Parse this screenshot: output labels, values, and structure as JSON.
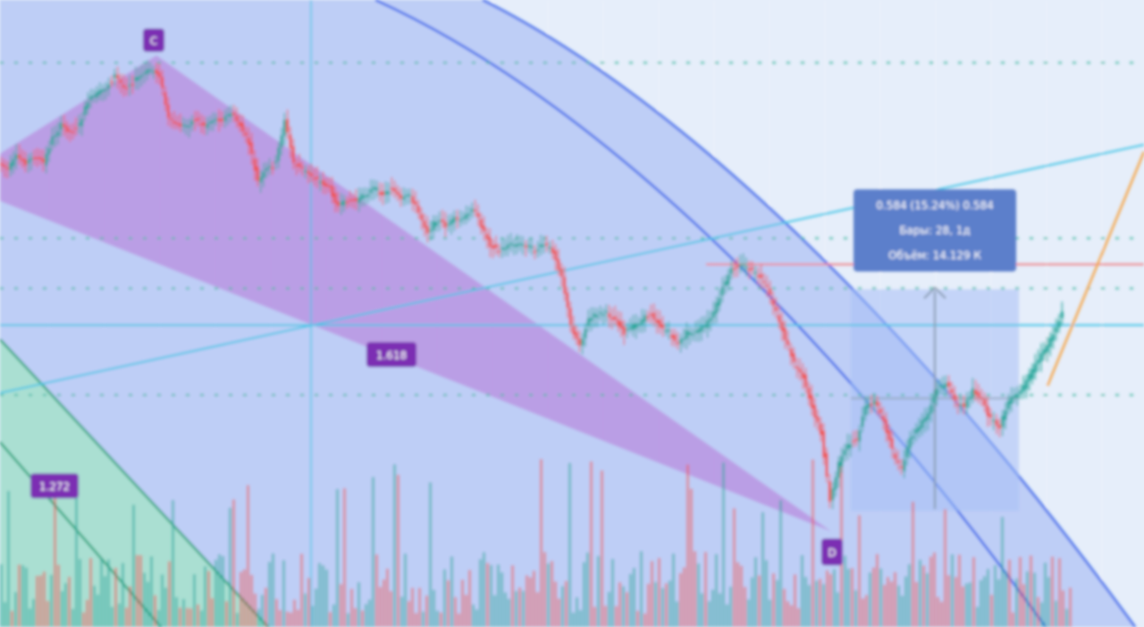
{
  "chart_data": {
    "type": "candlestick",
    "title": "",
    "xlabel": "",
    "ylabel": "",
    "grid": true,
    "colors": {
      "up": "#26a69a",
      "down": "#ef5350",
      "background": "#e6eefa",
      "channel_fill": "#b6c8f4",
      "channel_line": "#2f62ea",
      "wedge_fill": "#b98ee0",
      "label_bg": "#7b2fb3",
      "cyan_line": "#3fc4e6",
      "green_fill": "#a7e3cc",
      "green_line": "#1fa37a",
      "orange_line": "#f5a64a",
      "red_line": "#f07f85",
      "tooltip_bg": "#5c7fcb",
      "dotted_line": "#45b8a4"
    },
    "pattern_labels": [
      "C",
      "1.618",
      "1.272",
      "D"
    ],
    "tooltip": {
      "line1": "0.584 (15.24%) 0.584",
      "line2": "Бары: 28, 1д",
      "line3": "Объём: 14.129 К"
    },
    "horizontal_levels": [
      0.1,
      0.38,
      0.46,
      0.63
    ],
    "resistance_level": 0.42,
    "price_path": [
      [
        0,
        0.26
      ],
      [
        10,
        0.27
      ],
      [
        20,
        0.25
      ],
      [
        30,
        0.26
      ],
      [
        40,
        0.25
      ],
      [
        50,
        0.26
      ],
      [
        60,
        0.22
      ],
      [
        70,
        0.2
      ],
      [
        80,
        0.21
      ],
      [
        90,
        0.2
      ],
      [
        100,
        0.16
      ],
      [
        110,
        0.15
      ],
      [
        120,
        0.14
      ],
      [
        130,
        0.12
      ],
      [
        140,
        0.14
      ],
      [
        150,
        0.13
      ],
      [
        160,
        0.12
      ],
      [
        170,
        0.11
      ],
      [
        180,
        0.12
      ],
      [
        190,
        0.19
      ],
      [
        200,
        0.2
      ],
      [
        210,
        0.2
      ],
      [
        220,
        0.19
      ],
      [
        230,
        0.2
      ],
      [
        240,
        0.19
      ],
      [
        250,
        0.19
      ],
      [
        260,
        0.18
      ],
      [
        270,
        0.2
      ],
      [
        280,
        0.23
      ],
      [
        290,
        0.29
      ],
      [
        300,
        0.27
      ],
      [
        310,
        0.26
      ],
      [
        320,
        0.19
      ],
      [
        330,
        0.26
      ],
      [
        340,
        0.27
      ],
      [
        350,
        0.28
      ],
      [
        360,
        0.29
      ],
      [
        370,
        0.3
      ],
      [
        380,
        0.33
      ],
      [
        390,
        0.32
      ],
      [
        400,
        0.32
      ],
      [
        410,
        0.31
      ],
      [
        420,
        0.3
      ],
      [
        430,
        0.31
      ],
      [
        440,
        0.3
      ],
      [
        450,
        0.32
      ],
      [
        460,
        0.31
      ],
      [
        470,
        0.34
      ],
      [
        480,
        0.37
      ],
      [
        490,
        0.35
      ],
      [
        500,
        0.36
      ],
      [
        510,
        0.35
      ],
      [
        520,
        0.35
      ],
      [
        530,
        0.33
      ],
      [
        540,
        0.36
      ],
      [
        550,
        0.39
      ],
      [
        560,
        0.4
      ],
      [
        570,
        0.39
      ],
      [
        580,
        0.39
      ],
      [
        590,
        0.39
      ],
      [
        600,
        0.4
      ],
      [
        610,
        0.39
      ],
      [
        620,
        0.4
      ],
      [
        630,
        0.44
      ],
      [
        640,
        0.52
      ],
      [
        650,
        0.55
      ],
      [
        660,
        0.51
      ],
      [
        670,
        0.5
      ],
      [
        680,
        0.5
      ],
      [
        690,
        0.51
      ],
      [
        700,
        0.53
      ],
      [
        710,
        0.52
      ],
      [
        720,
        0.51
      ],
      [
        730,
        0.5
      ],
      [
        740,
        0.52
      ],
      [
        750,
        0.53
      ],
      [
        760,
        0.55
      ],
      [
        770,
        0.53
      ],
      [
        780,
        0.53
      ],
      [
        790,
        0.52
      ],
      [
        800,
        0.5
      ],
      [
        810,
        0.46
      ],
      [
        820,
        0.43
      ],
      [
        830,
        0.42
      ],
      [
        840,
        0.43
      ],
      [
        850,
        0.44
      ],
      [
        860,
        0.46
      ],
      [
        870,
        0.5
      ],
      [
        880,
        0.54
      ],
      [
        890,
        0.58
      ],
      [
        900,
        0.6
      ],
      [
        910,
        0.65
      ],
      [
        920,
        0.69
      ],
      [
        930,
        0.8
      ],
      [
        940,
        0.74
      ],
      [
        950,
        0.71
      ],
      [
        960,
        0.7
      ],
      [
        970,
        0.65
      ],
      [
        980,
        0.64
      ],
      [
        990,
        0.67
      ],
      [
        1000,
        0.72
      ],
      [
        1010,
        0.75
      ],
      [
        1020,
        0.7
      ],
      [
        1030,
        0.68
      ],
      [
        1040,
        0.66
      ],
      [
        1050,
        0.62
      ],
      [
        1060,
        0.61
      ],
      [
        1070,
        0.64
      ],
      [
        1080,
        0.65
      ],
      [
        1090,
        0.62
      ],
      [
        1100,
        0.64
      ],
      [
        1110,
        0.67
      ],
      [
        1120,
        0.68
      ],
      [
        1130,
        0.64
      ],
      [
        1140,
        0.63
      ],
      [
        1150,
        0.61
      ],
      [
        1160,
        0.58
      ],
      [
        1170,
        0.56
      ],
      [
        1180,
        0.53
      ],
      [
        1190,
        0.5
      ]
    ]
  }
}
